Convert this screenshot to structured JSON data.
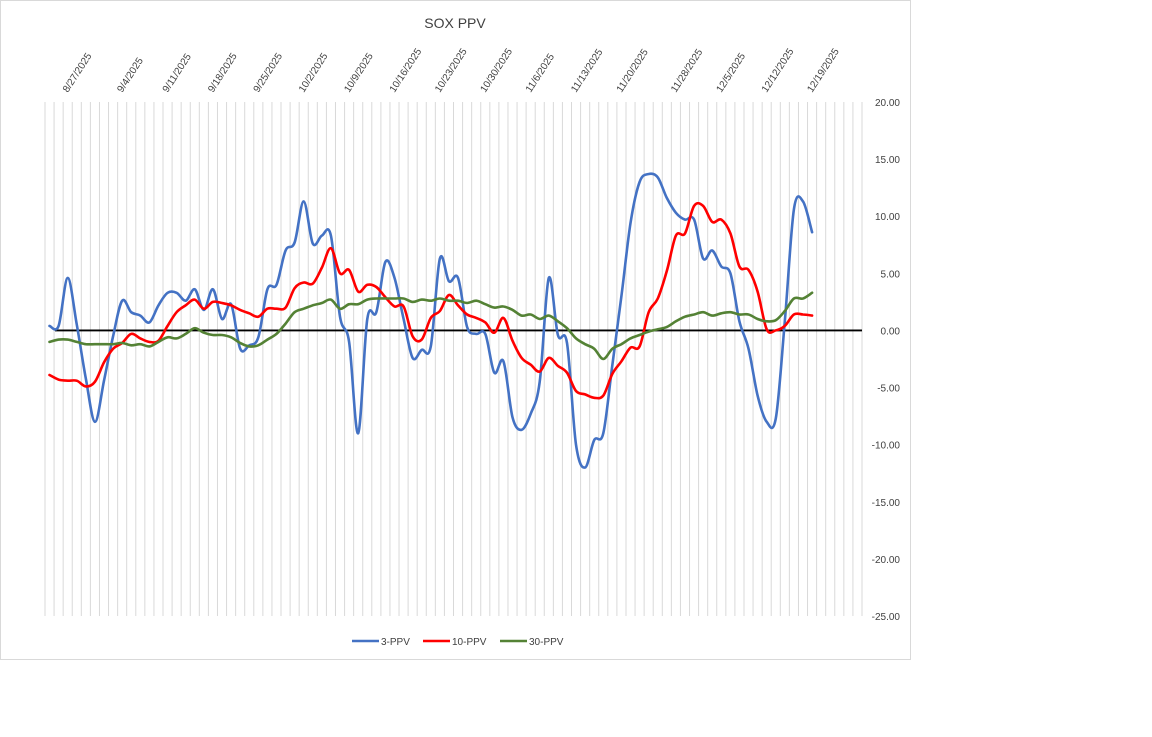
{
  "chart_data": {
    "type": "line",
    "title": "SOX PPV",
    "xlabel": "",
    "ylabel": "",
    "ylim": [
      -25,
      20
    ],
    "ytick_step": 5,
    "y_ticks": [
      "20.00",
      "15.00",
      "10.00",
      "5.00",
      "0.00",
      "-5.00",
      "-10.00",
      "-15.00",
      "-20.00",
      "-25.00"
    ],
    "y_axis_position": "right",
    "x_tick_labels": [
      "8/27/2025",
      "9/4/2025",
      "9/11/2025",
      "9/18/2025",
      "9/25/2025",
      "10/2/2025",
      "10/9/2025",
      "10/16/2025",
      "10/23/2025",
      "10/30/2025",
      "11/6/2025",
      "11/13/2025",
      "11/20/2025",
      "11/28/2025",
      "12/5/2025",
      "12/12/2025",
      "12/19/2025"
    ],
    "x_tick_index": [
      2,
      8,
      13,
      18,
      23,
      28,
      33,
      38,
      43,
      48,
      53,
      58,
      63,
      69,
      74,
      79,
      84
    ],
    "n_slots": 90,
    "grid": "vertical",
    "legend_position": "bottom",
    "series": [
      {
        "name": "3-PPV",
        "color": "#4472c4",
        "values": [
          0.4,
          0.4,
          4.6,
          0.5,
          -4.2,
          -8.0,
          -4.4,
          -0.5,
          2.6,
          1.6,
          1.3,
          0.7,
          2.2,
          3.3,
          3.3,
          2.6,
          3.6,
          1.8,
          3.6,
          1.0,
          2.3,
          -1.6,
          -1.3,
          -0.6,
          3.6,
          4.0,
          7.0,
          7.7,
          11.3,
          7.6,
          8.3,
          8.3,
          1.2,
          -1.0,
          -9.0,
          1.0,
          1.6,
          6.0,
          4.6,
          1.0,
          -2.4,
          -1.7,
          -1.4,
          6.3,
          4.3,
          4.6,
          0.3,
          -0.3,
          -0.3,
          -3.7,
          -2.7,
          -7.6,
          -8.7,
          -7.3,
          -4.5,
          4.6,
          -0.4,
          -1.1,
          -10.0,
          -12.0,
          -9.6,
          -9.0,
          -3.0,
          3.0,
          9.4,
          13.0,
          13.7,
          13.4,
          11.6,
          10.3,
          9.7,
          9.7,
          6.3,
          7.0,
          5.6,
          5.0,
          0.8,
          -1.6,
          -5.7,
          -8.0,
          -7.7,
          0.8,
          10.6,
          11.3,
          8.6
        ]
      },
      {
        "name": "10-PPV",
        "color": "#ff0000",
        "values": [
          -3.9,
          -4.3,
          -4.4,
          -4.4,
          -4.9,
          -4.5,
          -2.8,
          -1.6,
          -1.1,
          -0.3,
          -0.7,
          -1.0,
          -0.9,
          0.4,
          1.6,
          2.2,
          2.7,
          1.9,
          2.5,
          2.4,
          2.2,
          1.8,
          1.5,
          1.2,
          1.9,
          1.9,
          2.0,
          3.7,
          4.2,
          4.1,
          5.5,
          7.2,
          5.0,
          5.3,
          3.4,
          4.0,
          3.8,
          2.9,
          2.1,
          2.1,
          -0.5,
          -0.8,
          1.1,
          1.7,
          3.1,
          2.2,
          1.4,
          1.1,
          0.7,
          -0.2,
          1.1,
          -0.9,
          -2.4,
          -3.0,
          -3.6,
          -2.4,
          -3.1,
          -3.7,
          -5.3,
          -5.6,
          -5.9,
          -5.7,
          -3.8,
          -2.7,
          -1.5,
          -1.4,
          1.6,
          2.8,
          5.2,
          8.3,
          8.5,
          10.9,
          10.9,
          9.5,
          9.7,
          8.5,
          5.6,
          5.3,
          3.4,
          0.1,
          0.0,
          0.4,
          1.4,
          1.4,
          1.3
        ]
      },
      {
        "name": "30-PPV",
        "color": "#548235",
        "values": [
          -1.0,
          -0.8,
          -0.8,
          -1.0,
          -1.2,
          -1.2,
          -1.2,
          -1.2,
          -1.1,
          -1.3,
          -1.2,
          -1.4,
          -1.0,
          -0.6,
          -0.7,
          -0.3,
          0.2,
          -0.2,
          -0.4,
          -0.4,
          -0.6,
          -1.1,
          -1.4,
          -1.3,
          -0.8,
          -0.3,
          0.6,
          1.6,
          1.9,
          2.2,
          2.4,
          2.7,
          1.9,
          2.3,
          2.3,
          2.7,
          2.8,
          2.8,
          2.8,
          2.8,
          2.5,
          2.7,
          2.6,
          2.8,
          2.6,
          2.6,
          2.4,
          2.6,
          2.3,
          2.0,
          2.1,
          1.8,
          1.3,
          1.4,
          1.0,
          1.3,
          0.8,
          0.2,
          -0.7,
          -1.2,
          -1.6,
          -2.5,
          -1.6,
          -1.2,
          -0.7,
          -0.4,
          -0.1,
          0.1,
          0.3,
          0.8,
          1.2,
          1.4,
          1.6,
          1.3,
          1.5,
          1.6,
          1.4,
          1.4,
          1.0,
          0.8,
          0.9,
          1.7,
          2.8,
          2.8,
          3.3
        ]
      }
    ]
  }
}
